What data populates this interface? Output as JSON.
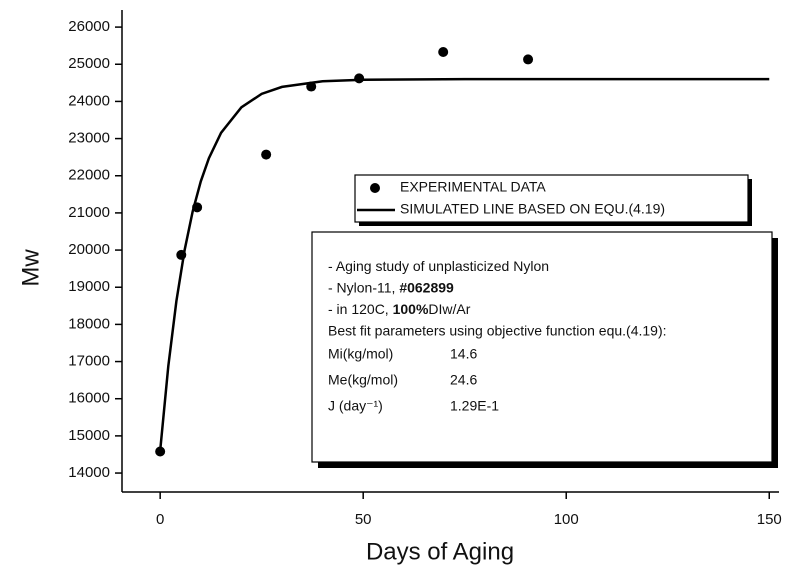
{
  "chart_data": {
    "type": "scatter",
    "x_label": "Days of Aging",
    "y_label": "Mw",
    "xlim": [
      -9.4,
      152.4
    ],
    "ylim": [
      13490,
      26460
    ],
    "xticks": [
      0,
      50,
      100,
      150
    ],
    "yticks": [
      14000,
      15000,
      16000,
      17000,
      18000,
      19000,
      20000,
      21000,
      22000,
      23000,
      24000,
      25000,
      26000
    ],
    "series": [
      {
        "name": "EXPERIMENTAL DATA",
        "style": "markers",
        "color": "#000000",
        "x": [
          0,
          5.2,
          9.1,
          26.1,
          37.2,
          49,
          69.7,
          90.6
        ],
        "values": [
          14580,
          19870,
          21150,
          22570,
          24400,
          24620,
          25330,
          25130
        ]
      },
      {
        "name": "SIMULATED LINE BASED ON EQU.(4.19)",
        "style": "line",
        "color": "#000000",
        "x": [
          0,
          2,
          4,
          6,
          8,
          10,
          12,
          15,
          20,
          25,
          30,
          40,
          50,
          75,
          100,
          150
        ],
        "values": [
          14600,
          16874,
          18631,
          19988,
          21037,
          21847,
          22473,
          23156,
          23842,
          24203,
          24391,
          24543,
          24584,
          24600,
          24600,
          24600
        ]
      }
    ],
    "annotation": {
      "lines": [
        [
          "- Aging study of unplasticized Nylon"
        ],
        [
          "- Nylon-11, ",
          "#062899"
        ],
        [
          "- in 120C, ",
          "100%",
          "DIw/Ar"
        ],
        [
          "Best fit parameters using objective function equ.(4.19):"
        ]
      ],
      "parameters": [
        {
          "name": "Mi(kg/mol)",
          "value": 14.6
        },
        {
          "name": "Me(kg/mol)",
          "value": 24.6
        },
        {
          "name": "J (day⁻¹)",
          "value": 0.129,
          "label": "1.29E-1"
        }
      ]
    }
  }
}
